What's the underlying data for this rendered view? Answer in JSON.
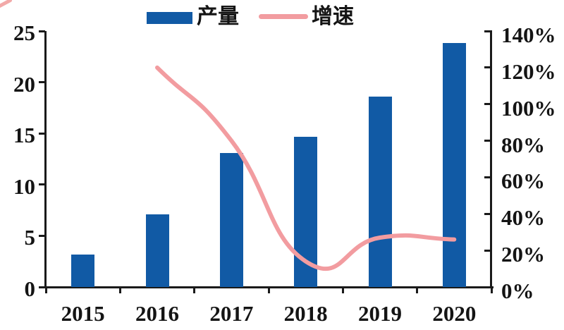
{
  "page": {
    "background": "#ffffff",
    "text_color": "#141414"
  },
  "legend": {
    "items": [
      {
        "label": "产量",
        "type": "bar-swatch",
        "color": "#115AA5"
      },
      {
        "label": "增速",
        "type": "line-swatch",
        "color": "#F29CA0"
      }
    ]
  },
  "chart_data": {
    "type": "bar",
    "subtype": "bar-line-combo",
    "categories": [
      "2015",
      "2016",
      "2017",
      "2018",
      "2019",
      "2020"
    ],
    "series": [
      {
        "name": "产量",
        "type": "bar",
        "axis": "left",
        "color": "#115AA5",
        "values": [
          3.2,
          7.1,
          13.1,
          14.7,
          18.6,
          23.8
        ]
      },
      {
        "name": "增速",
        "type": "line",
        "axis": "right",
        "color": "#F29CA0",
        "unit": "%",
        "values": [
          null,
          120,
          80,
          14,
          27,
          26
        ]
      }
    ],
    "left_axis": {
      "ticks": [
        "0",
        "5",
        "10",
        "15",
        "20",
        "25"
      ],
      "lim": [
        0,
        25
      ]
    },
    "right_axis": {
      "ticks": [
        "0%",
        "20%",
        "40%",
        "60%",
        "80%",
        "100%",
        "120%",
        "140%"
      ],
      "lim": [
        0,
        140
      ]
    },
    "grid": false,
    "legend_position": "top-center"
  }
}
